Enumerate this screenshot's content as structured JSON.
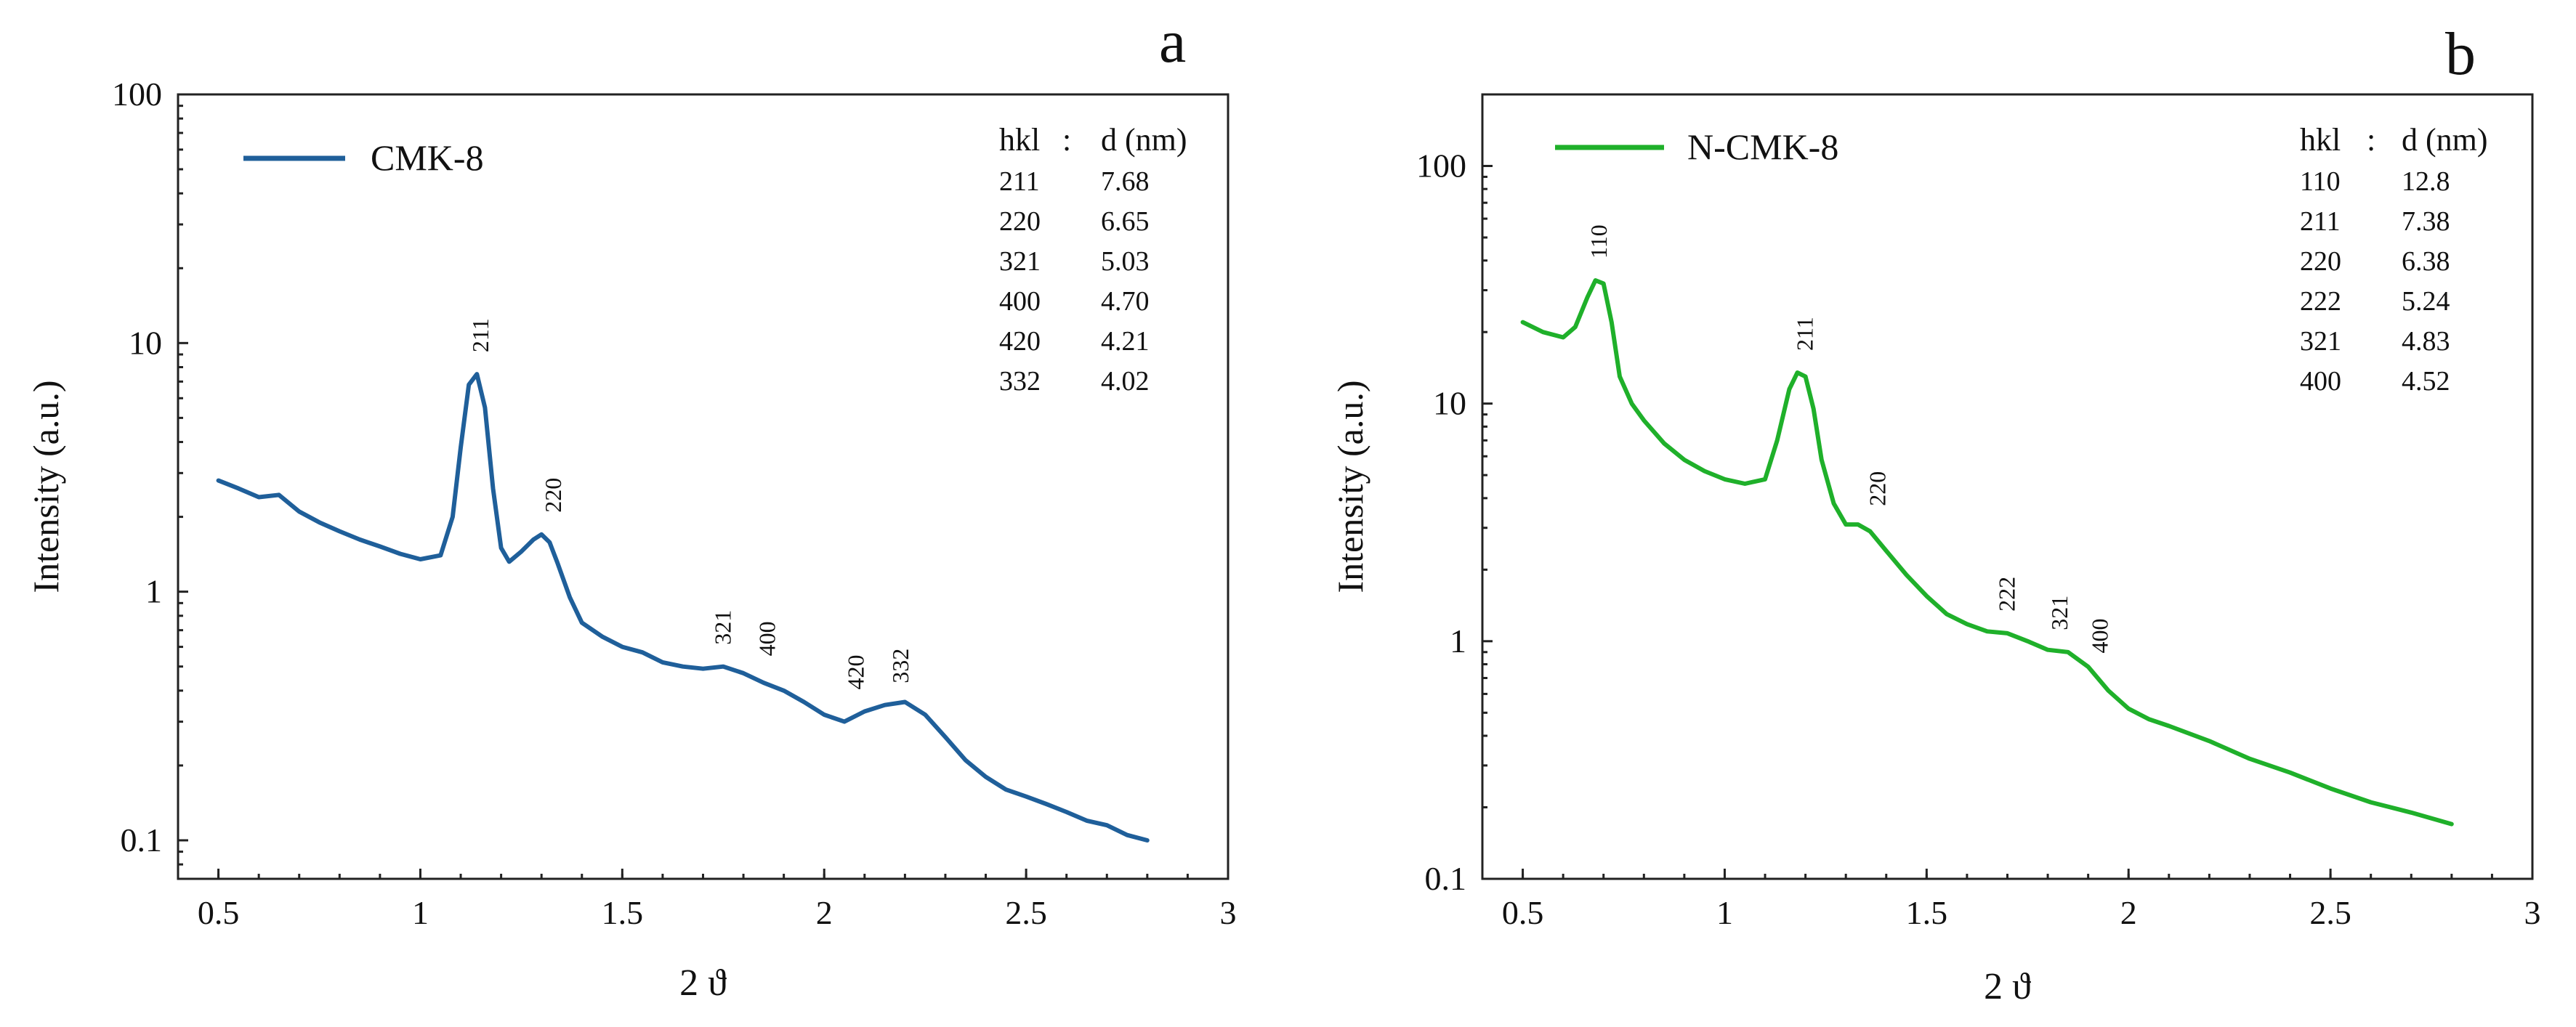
{
  "chart_data": [
    {
      "type": "line",
      "panel_label": "a",
      "title": "",
      "xlabel": "2 ϑ",
      "ylabel": "Intensity (a.u.)",
      "xscale": "linear",
      "yscale": "log",
      "xlim": [
        0.4,
        3.0
      ],
      "ylim": [
        0.07,
        100
      ],
      "xticks": [
        0.5,
        1,
        1.5,
        2,
        2.5,
        3
      ],
      "xtick_labels": [
        "0.5",
        "1",
        "1.5",
        "2",
        "2.5",
        "3"
      ],
      "yticks": [
        0.1,
        1,
        10,
        100
      ],
      "ytick_labels": [
        "0.1",
        "1",
        "10",
        "100"
      ],
      "legend": {
        "position": "top-left",
        "entries": [
          "CMK-8"
        ]
      },
      "series": [
        {
          "name": "CMK-8",
          "color": "#1f5f9a",
          "x": [
            0.5,
            0.55,
            0.6,
            0.65,
            0.7,
            0.75,
            0.8,
            0.85,
            0.9,
            0.95,
            1.0,
            1.05,
            1.08,
            1.1,
            1.12,
            1.14,
            1.16,
            1.18,
            1.2,
            1.22,
            1.25,
            1.28,
            1.3,
            1.32,
            1.34,
            1.37,
            1.4,
            1.45,
            1.5,
            1.55,
            1.6,
            1.65,
            1.7,
            1.75,
            1.8,
            1.85,
            1.9,
            1.95,
            2.0,
            2.05,
            2.1,
            2.15,
            2.2,
            2.25,
            2.3,
            2.35,
            2.4,
            2.45,
            2.5,
            2.55,
            2.6,
            2.65,
            2.7,
            2.75,
            2.8
          ],
          "y": [
            2.8,
            2.6,
            2.4,
            2.45,
            2.1,
            1.9,
            1.75,
            1.62,
            1.52,
            1.42,
            1.35,
            1.4,
            2.0,
            3.8,
            6.8,
            7.5,
            5.5,
            2.6,
            1.5,
            1.32,
            1.45,
            1.62,
            1.7,
            1.58,
            1.3,
            0.95,
            0.75,
            0.66,
            0.6,
            0.57,
            0.52,
            0.5,
            0.49,
            0.5,
            0.47,
            0.43,
            0.4,
            0.36,
            0.32,
            0.3,
            0.33,
            0.35,
            0.36,
            0.32,
            0.26,
            0.21,
            0.18,
            0.16,
            0.15,
            0.14,
            0.13,
            0.12,
            0.115,
            0.105,
            0.1
          ]
        }
      ],
      "peak_labels": [
        {
          "label": "211",
          "x": 1.15,
          "y": 7.5
        },
        {
          "label": "220",
          "x": 1.33,
          "y": 1.7
        },
        {
          "label": "321",
          "x": 1.75,
          "y": 0.5
        },
        {
          "label": "400",
          "x": 1.86,
          "y": 0.45
        },
        {
          "label": "420",
          "x": 2.08,
          "y": 0.33
        },
        {
          "label": "332",
          "x": 2.19,
          "y": 0.35
        }
      ],
      "hkl_table": {
        "header_hkl": "hkl",
        "header_sep": ":",
        "header_d": "d (nm)",
        "rows": [
          {
            "hkl": "211",
            "d": "7.68"
          },
          {
            "hkl": "220",
            "d": "6.65"
          },
          {
            "hkl": "321",
            "d": "5.03"
          },
          {
            "hkl": "400",
            "d": "4.70"
          },
          {
            "hkl": "420",
            "d": "4.21"
          },
          {
            "hkl": "332",
            "d": "4.02"
          }
        ]
      }
    },
    {
      "type": "line",
      "panel_label": "b",
      "title": "",
      "xlabel": "2 ϑ",
      "ylabel": "Intensity (a.u.)",
      "xscale": "linear",
      "yscale": "log",
      "xlim": [
        0.4,
        3.0
      ],
      "ylim": [
        0.1,
        200
      ],
      "xticks": [
        0.5,
        1,
        1.5,
        2,
        2.5,
        3
      ],
      "xtick_labels": [
        "0.5",
        "1",
        "1.5",
        "2",
        "2.5",
        "3"
      ],
      "yticks": [
        0.1,
        1,
        10,
        100
      ],
      "ytick_labels": [
        "0.1",
        "1",
        "10",
        "100"
      ],
      "legend": {
        "position": "top-left",
        "entries": [
          "N-CMK-8"
        ]
      },
      "series": [
        {
          "name": "N-CMK-8",
          "color": "#1fb02a",
          "x": [
            0.5,
            0.55,
            0.6,
            0.63,
            0.66,
            0.68,
            0.7,
            0.72,
            0.74,
            0.77,
            0.8,
            0.85,
            0.9,
            0.95,
            1.0,
            1.05,
            1.1,
            1.13,
            1.16,
            1.18,
            1.2,
            1.22,
            1.24,
            1.27,
            1.3,
            1.33,
            1.36,
            1.4,
            1.45,
            1.5,
            1.55,
            1.6,
            1.65,
            1.7,
            1.75,
            1.8,
            1.85,
            1.9,
            1.95,
            2.0,
            2.05,
            2.1,
            2.2,
            2.3,
            2.4,
            2.5,
            2.6,
            2.7,
            2.8
          ],
          "y": [
            22,
            20,
            19,
            21,
            28,
            33,
            32,
            22,
            13,
            10,
            8.5,
            6.8,
            5.8,
            5.2,
            4.8,
            4.6,
            4.8,
            7.0,
            11.5,
            13.5,
            13.0,
            9.5,
            5.8,
            3.8,
            3.1,
            3.1,
            2.9,
            2.4,
            1.9,
            1.55,
            1.3,
            1.18,
            1.1,
            1.08,
            1.0,
            0.92,
            0.9,
            0.78,
            0.62,
            0.52,
            0.47,
            0.44,
            0.38,
            0.32,
            0.28,
            0.24,
            0.21,
            0.19,
            0.17
          ]
        }
      ],
      "peak_labels": [
        {
          "label": "110",
          "x": 0.69,
          "y": 33
        },
        {
          "label": "211",
          "x": 1.2,
          "y": 13.5
        },
        {
          "label": "220",
          "x": 1.38,
          "y": 3.0
        },
        {
          "label": "222",
          "x": 1.7,
          "y": 1.08
        },
        {
          "label": "321",
          "x": 1.83,
          "y": 0.9
        },
        {
          "label": "400",
          "x": 1.93,
          "y": 0.72
        }
      ],
      "hkl_table": {
        "header_hkl": "hkl",
        "header_sep": ":",
        "header_d": "d (nm)",
        "rows": [
          {
            "hkl": "110",
            "d": "12.8"
          },
          {
            "hkl": "211",
            "d": "7.38"
          },
          {
            "hkl": "220",
            "d": "6.38"
          },
          {
            "hkl": "222",
            "d": "5.24"
          },
          {
            "hkl": "321",
            "d": "4.83"
          },
          {
            "hkl": "400",
            "d": "4.52"
          }
        ]
      }
    }
  ]
}
